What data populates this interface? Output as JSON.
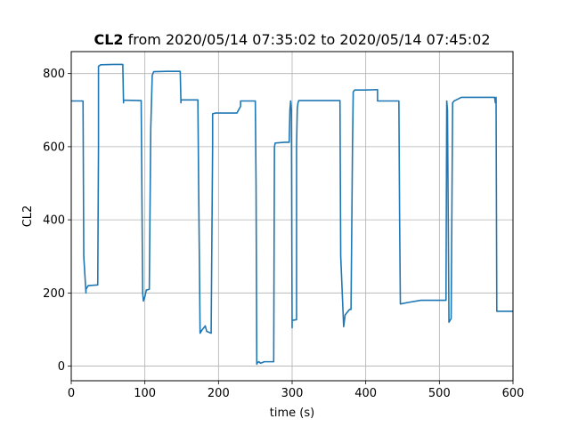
{
  "chart_data": {
    "type": "line",
    "title_bold": "CL2",
    "title_rest": " from 2020/05/14 07:35:02 to 2020/05/14 07:45:02",
    "xlabel": "time (s)",
    "ylabel": "CL2",
    "xlim": [
      0,
      600
    ],
    "ylim": [
      -40,
      860
    ],
    "xticks": [
      0,
      100,
      200,
      300,
      400,
      500,
      600
    ],
    "yticks": [
      0,
      200,
      400,
      600,
      800
    ],
    "grid": true,
    "line_color": "#1f77b4",
    "series": [
      {
        "x": [
          0,
          16,
          17,
          20,
          20,
          23,
          36,
          37,
          37,
          40,
          60,
          70,
          71,
          71,
          75,
          95,
          97,
          98,
          100,
          102,
          106,
          108,
          110,
          112,
          130,
          148,
          149,
          149,
          155,
          172,
          173,
          175,
          178,
          182,
          184,
          190,
          192,
          192,
          196,
          225,
          230,
          230,
          250,
          251,
          252,
          253,
          255,
          257,
          260,
          262,
          265,
          275,
          276,
          277,
          290,
          296,
          297,
          298,
          299,
          300,
          300,
          306,
          306,
          307,
          308,
          309,
          315,
          330,
          365,
          366,
          370,
          372,
          378,
          380,
          382,
          383,
          385,
          400,
          415,
          416,
          416,
          420,
          445,
          446,
          447,
          460,
          475,
          509,
          510,
          511,
          513,
          516,
          518,
          520,
          525,
          530,
          540,
          575,
          576,
          577,
          578,
          600
        ],
        "y": [
          725,
          725,
          300,
          200,
          210,
          220,
          222,
          600,
          820,
          824,
          825,
          825,
          720,
          727,
          727,
          726,
          200,
          178,
          190,
          208,
          210,
          650,
          795,
          805,
          806,
          806,
          720,
          728,
          728,
          728,
          500,
          90,
          100,
          110,
          95,
          90,
          600,
          690,
          692,
          692,
          710,
          725,
          725,
          500,
          5,
          10,
          12,
          8,
          10,
          12,
          12,
          12,
          600,
          610,
          612,
          612,
          700,
          725,
          700,
          105,
          125,
          127,
          600,
          705,
          720,
          726,
          726,
          726,
          726,
          300,
          108,
          140,
          155,
          155,
          600,
          750,
          755,
          755,
          756,
          756,
          725,
          725,
          725,
          400,
          170,
          175,
          180,
          180,
          725,
          700,
          120,
          130,
          720,
          725,
          730,
          735,
          735,
          735,
          720,
          735,
          150,
          150
        ]
      }
    ]
  }
}
